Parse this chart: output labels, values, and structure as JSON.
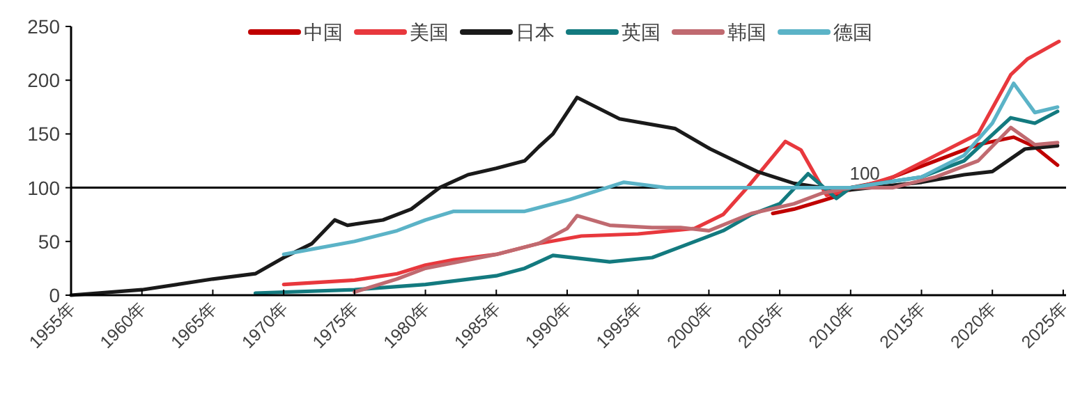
{
  "chart_data": {
    "type": "line",
    "xlim": [
      1955,
      2025.2
    ],
    "ylim": [
      0,
      250
    ],
    "xticks": [
      {
        "value": 1955,
        "label": "1955年"
      },
      {
        "value": 1960,
        "label": "1960年"
      },
      {
        "value": 1965,
        "label": "1965年"
      },
      {
        "value": 1970,
        "label": "1970年"
      },
      {
        "value": 1975,
        "label": "1975年"
      },
      {
        "value": 1980,
        "label": "1980年"
      },
      {
        "value": 1985,
        "label": "1985年"
      },
      {
        "value": 1990,
        "label": "1990年"
      },
      {
        "value": 1995,
        "label": "1995年"
      },
      {
        "value": 2000,
        "label": "2000年"
      },
      {
        "value": 2005,
        "label": "2005年"
      },
      {
        "value": 2010,
        "label": "2010年"
      },
      {
        "value": 2015,
        "label": "2015年"
      },
      {
        "value": 2020,
        "label": "2020年"
      },
      {
        "value": 2025,
        "label": "2025年"
      }
    ],
    "yticks": [
      0,
      50,
      100,
      150,
      200,
      250
    ],
    "grid": false,
    "legend": "top",
    "ref_lines": [
      {
        "axis": "y",
        "value": 100,
        "label": "100",
        "color": "#000000"
      }
    ],
    "series": [
      {
        "name": "中国",
        "color": "#c00000",
        "x": [
          2004.5,
          2006,
          2008,
          2009,
          2010,
          2012,
          2013,
          2015,
          2017,
          2019,
          2021.5,
          2023,
          2024.6
        ],
        "values": [
          76,
          80,
          88,
          92,
          100,
          105,
          110,
          120,
          130,
          140,
          147,
          138,
          121
        ]
      },
      {
        "name": "美国",
        "color": "#e8383d",
        "x": [
          1970,
          1975,
          1978,
          1980,
          1982,
          1985,
          1988,
          1991,
          1995,
          1999,
          2001,
          2002.7,
          2005.4,
          2006.5,
          2008.3,
          2010,
          2013,
          2016,
          2019,
          2021.3,
          2022.5,
          2024.7
        ],
        "values": [
          10,
          14,
          20,
          28,
          33,
          38,
          48,
          55,
          57,
          62,
          75,
          100,
          143,
          135,
          93,
          98,
          110,
          130,
          150,
          205,
          220,
          236
        ]
      },
      {
        "name": "日本",
        "color": "#1a1a1a",
        "x": [
          1955,
          1960,
          1965,
          1968,
          1970,
          1972,
          1973.6,
          1974.5,
          1977,
          1979,
          1981,
          1983,
          1985,
          1987,
          1988,
          1989,
          1990.7,
          1993.7,
          1997.6,
          2000.1,
          2003.4,
          2006,
          2008,
          2010,
          2015,
          2018,
          2020,
          2022.3,
          2024.6
        ],
        "values": [
          0,
          5,
          15,
          20,
          35,
          48,
          70,
          65,
          70,
          80,
          100,
          112,
          118,
          125,
          138,
          150,
          184,
          164,
          155,
          136,
          115,
          104,
          100,
          98,
          105,
          112,
          115,
          136,
          139
        ]
      },
      {
        "name": "英国",
        "color": "#137a7f",
        "x": [
          1968,
          1975,
          1980,
          1985,
          1987,
          1989,
          1993,
          1996,
          1998,
          2001,
          2003,
          2005,
          2007,
          2009,
          2010,
          2015,
          2018,
          2021.3,
          2023,
          2024.6
        ],
        "values": [
          2,
          5,
          10,
          18,
          25,
          37,
          31,
          35,
          45,
          60,
          75,
          85,
          113,
          90,
          100,
          110,
          125,
          165,
          160,
          171
        ]
      },
      {
        "name": "韩国",
        "color": "#c06a70",
        "x": [
          1975,
          1978,
          1980,
          1985,
          1988,
          1990,
          1990.7,
          1993,
          1996,
          1998,
          2000,
          2003,
          2006,
          2008,
          2010,
          2013,
          2016,
          2019,
          2021.3,
          2023,
          2024.6
        ],
        "values": [
          3,
          15,
          25,
          38,
          48,
          62,
          74,
          65,
          63,
          63,
          60,
          76,
          85,
          95,
          100,
          100,
          110,
          125,
          156,
          140,
          142
        ]
      },
      {
        "name": "德国",
        "color": "#5bb3c7",
        "x": [
          1970,
          1975,
          1978,
          1980,
          1982,
          1987,
          1990.2,
          1994,
          1997,
          2008,
          2010,
          2015,
          2018,
          2020,
          2021.5,
          2023,
          2024.6
        ],
        "values": [
          38,
          50,
          60,
          70,
          78,
          78,
          89,
          105,
          100,
          100,
          100,
          110,
          130,
          160,
          197,
          170,
          175
        ]
      }
    ]
  }
}
